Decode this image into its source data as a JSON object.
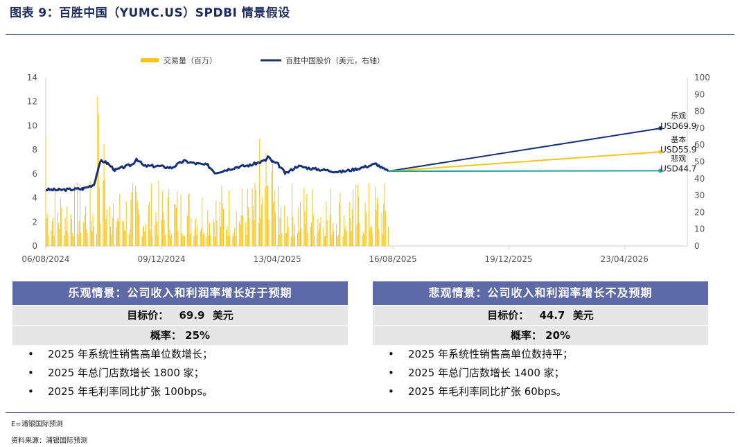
{
  "header": {
    "title": "图表 9：百胜中国（YUMC.US）SPDBI 情景假设"
  },
  "colors": {
    "volume": "#f5c518",
    "price": "#15307a",
    "base": "#f5c518",
    "bear": "#1fa39a",
    "panel_head": "#5e6aa8",
    "panel_row": "#e6e6e6",
    "rule": "#2a3e7a"
  },
  "chart_data": {
    "type": "bar+line",
    "legend": {
      "volume": "交易量（百万）",
      "price": "百胜中国股价（美元，右轴）",
      "placement": "top"
    },
    "x_ticks": [
      "06/08/2024",
      "09/12/2024",
      "13/04/2025",
      "16/08/2025",
      "19/12/2025",
      "23/04/2026"
    ],
    "x_range": [
      "2024-08-06",
      "2026-06-30"
    ],
    "y_left": {
      "ticks": [
        0,
        2,
        4,
        6,
        8,
        10,
        12,
        14
      ],
      "range": [
        0,
        14
      ]
    },
    "y_right": {
      "ticks": [
        0,
        10,
        20,
        30,
        40,
        50,
        60,
        70,
        80,
        90,
        100
      ],
      "range": [
        0,
        100
      ]
    },
    "price_series": {
      "name": "百胜中国股价（美元，右轴）",
      "points": [
        [
          "2024-08-06",
          33.5
        ],
        [
          "2024-08-20",
          33.3
        ],
        [
          "2024-09-01",
          33.6
        ],
        [
          "2024-09-15",
          34.0
        ],
        [
          "2024-09-27",
          36.5
        ],
        [
          "2024-10-01",
          44.5
        ],
        [
          "2024-10-05",
          51.0
        ],
        [
          "2024-10-12",
          49.0
        ],
        [
          "2024-10-20",
          45.0
        ],
        [
          "2024-10-30",
          47.0
        ],
        [
          "2024-11-08",
          48.5
        ],
        [
          "2024-11-12",
          52.0
        ],
        [
          "2024-11-20",
          47.5
        ],
        [
          "2024-12-05",
          47.5
        ],
        [
          "2024-12-20",
          46.5
        ],
        [
          "2025-01-02",
          50.5
        ],
        [
          "2025-01-15",
          49.0
        ],
        [
          "2025-01-28",
          48.0
        ],
        [
          "2025-02-05",
          43.5
        ],
        [
          "2025-02-15",
          45.0
        ],
        [
          "2025-03-01",
          47.0
        ],
        [
          "2025-03-15",
          48.0
        ],
        [
          "2025-04-01",
          51.0
        ],
        [
          "2025-04-03",
          53.0
        ],
        [
          "2025-04-08",
          50.0
        ],
        [
          "2025-04-14",
          48.5
        ],
        [
          "2025-04-22",
          43.0
        ],
        [
          "2025-05-05",
          47.5
        ],
        [
          "2025-05-20",
          46.0
        ],
        [
          "2025-06-05",
          45.0
        ],
        [
          "2025-06-20",
          44.0
        ],
        [
          "2025-07-05",
          45.5
        ],
        [
          "2025-07-20",
          47.5
        ],
        [
          "2025-07-29",
          48.8
        ],
        [
          "2025-08-05",
          46.0
        ],
        [
          "2025-08-11",
          44.4
        ]
      ]
    },
    "volume_series": {
      "name": "交易量（百万）",
      "start": "2024-08-06",
      "end": "2025-08-11",
      "spikes": [
        [
          "2024-08-06",
          9.2
        ],
        [
          "2024-10-01",
          12.4
        ],
        [
          "2024-10-02",
          11.0
        ],
        [
          "2024-10-08",
          8.5
        ],
        [
          "2025-03-25",
          8.9
        ],
        [
          "2025-04-01",
          7.8
        ],
        [
          "2025-04-08",
          7.0
        ]
      ],
      "typical_range": [
        0.8,
        5.5
      ]
    },
    "scenarios": [
      {
        "name": "乐观",
        "label": "USD69.9",
        "value": 69.9,
        "end": "2026-06-01",
        "color_key": "price"
      },
      {
        "name": "基本",
        "label": "USD55.9",
        "value": 55.9,
        "end": "2026-06-01",
        "color_key": "base"
      },
      {
        "name": "悲观",
        "label": "USD44.7",
        "value": 44.7,
        "end": "2026-06-01",
        "color_key": "bear"
      }
    ]
  },
  "panels": {
    "bull": {
      "heading": "乐观情景：公司收入和利润率增长好于预期",
      "target_label": "目标价：",
      "target_value": "69.9",
      "target_unit": "美元",
      "prob_label": "概率：",
      "prob_value": "25%",
      "bullets": [
        "2025 年系统性销售高单位数增长；",
        "2025 年总门店数增长 1800 家；",
        "2025 年毛利率同比扩张 100bps。"
      ]
    },
    "bear": {
      "heading": "悲观情景：公司收入和利润率增长不及预期",
      "target_label": "目标价：",
      "target_value": "44.7",
      "target_unit": "美元",
      "prob_label": "概率：",
      "prob_value": "20%",
      "bullets": [
        "2025 年系统性销售高单位数持平；",
        "2025 年总门店数增长 1400 家；",
        "2025 年毛利率同比扩张 60bps。"
      ]
    },
    "bullet_glyph": "•"
  },
  "footer": {
    "note1": "E=浦银国际预测",
    "note2": "资料来源：浦银国际预测"
  }
}
